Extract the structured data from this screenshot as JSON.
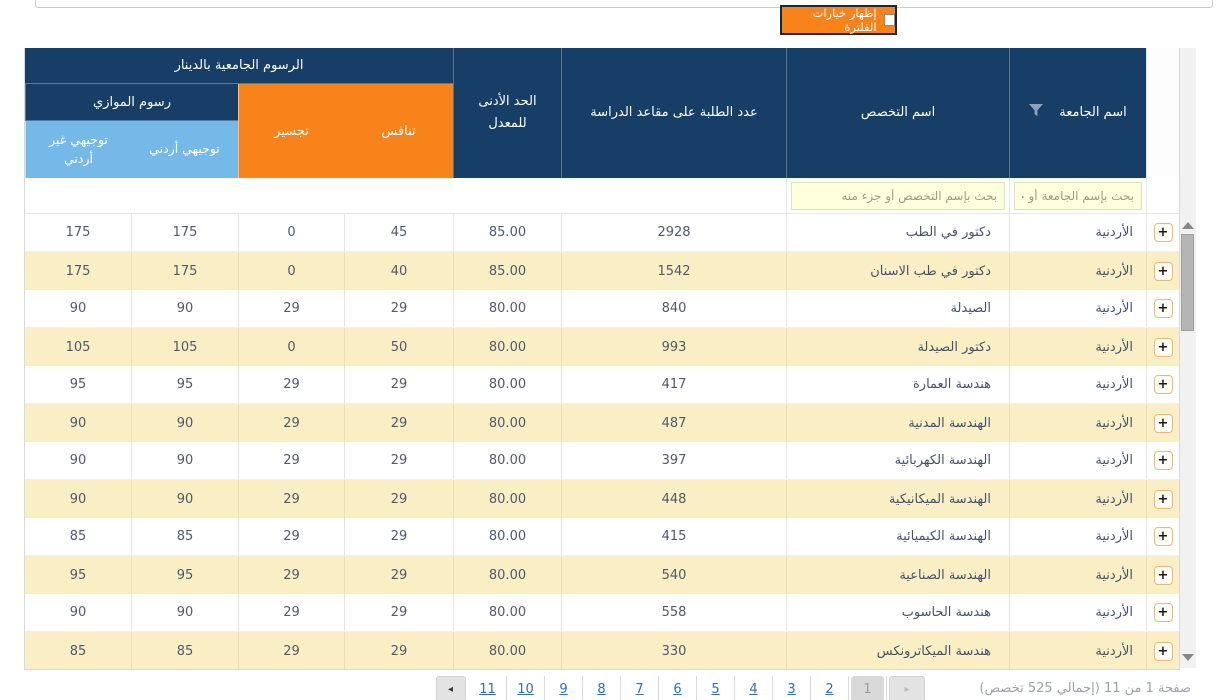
{
  "filter_button": {
    "label": "إظهار خيارات الفلترة",
    "checked": false
  },
  "table": {
    "group_headers": {
      "fees_dinar": "الرسوم الجامعية بالدينار",
      "parallel_fees": "رسوم الموازي"
    },
    "columns": {
      "university": "اسم الجامعة",
      "major": "اسم التخصص",
      "seats": "عدد الطلبة على مقاعد الدراسة",
      "min_avg": "الحد الأدنى للمعدل",
      "competitive": "تنافس",
      "bridging": "تجسير",
      "tawjihi_jordanian": "توجيهي أردني",
      "tawjihi_non_jordanian": "توجيهي غير أردني"
    },
    "search": {
      "university_placeholder": "بحث بإسم الجامعة أو جزء منه",
      "major_placeholder": "بحث بإسم التخصص أو جزء منه"
    },
    "expand_button_label": "+",
    "rows": [
      {
        "university": "الأردنية",
        "major": "دكتور في الطب",
        "seats": "2928",
        "min_avg": "85.00",
        "competitive": "45",
        "bridging": "0",
        "tawjihi_jordanian": "175",
        "tawjihi_non_jordanian": "175"
      },
      {
        "university": "الأردنية",
        "major": "دكتور في طب الاسنان",
        "seats": "1542",
        "min_avg": "85.00",
        "competitive": "40",
        "bridging": "0",
        "tawjihi_jordanian": "175",
        "tawjihi_non_jordanian": "175"
      },
      {
        "university": "الأردنية",
        "major": "الصيدلة",
        "seats": "840",
        "min_avg": "80.00",
        "competitive": "29",
        "bridging": "29",
        "tawjihi_jordanian": "90",
        "tawjihi_non_jordanian": "90"
      },
      {
        "university": "الأردنية",
        "major": "دكتور الصيدلة",
        "seats": "993",
        "min_avg": "80.00",
        "competitive": "50",
        "bridging": "0",
        "tawjihi_jordanian": "105",
        "tawjihi_non_jordanian": "105"
      },
      {
        "university": "الأردنية",
        "major": "هندسة العمارة",
        "seats": "417",
        "min_avg": "80.00",
        "competitive": "29",
        "bridging": "29",
        "tawjihi_jordanian": "95",
        "tawjihi_non_jordanian": "95"
      },
      {
        "university": "الأردنية",
        "major": "الهندسة المدنية",
        "seats": "487",
        "min_avg": "80.00",
        "competitive": "29",
        "bridging": "29",
        "tawjihi_jordanian": "90",
        "tawjihi_non_jordanian": "90"
      },
      {
        "university": "الأردنية",
        "major": "الهندسة الكهربائية",
        "seats": "397",
        "min_avg": "80.00",
        "competitive": "29",
        "bridging": "29",
        "tawjihi_jordanian": "90",
        "tawjihi_non_jordanian": "90"
      },
      {
        "university": "الأردنية",
        "major": "الهندسة الميكانيكية",
        "seats": "448",
        "min_avg": "80.00",
        "competitive": "29",
        "bridging": "29",
        "tawjihi_jordanian": "90",
        "tawjihi_non_jordanian": "90"
      },
      {
        "university": "الأردنية",
        "major": "الهندسة الكيميائية",
        "seats": "415",
        "min_avg": "80.00",
        "competitive": "29",
        "bridging": "29",
        "tawjihi_jordanian": "85",
        "tawjihi_non_jordanian": "85"
      },
      {
        "university": "الأردنية",
        "major": "الهندسة الصناعية",
        "seats": "540",
        "min_avg": "80.00",
        "competitive": "29",
        "bridging": "29",
        "tawjihi_jordanian": "95",
        "tawjihi_non_jordanian": "95"
      },
      {
        "university": "الأردنية",
        "major": "هندسة الحاسوب",
        "seats": "558",
        "min_avg": "80.00",
        "competitive": "29",
        "bridging": "29",
        "tawjihi_jordanian": "90",
        "tawjihi_non_jordanian": "90"
      },
      {
        "university": "الأردنية",
        "major": "هندسة الميكاترونكس",
        "seats": "330",
        "min_avg": "80.00",
        "competitive": "29",
        "bridging": "29",
        "tawjihi_jordanian": "85",
        "tawjihi_non_jordanian": "85"
      }
    ]
  },
  "pagination": {
    "prev_label": "◂",
    "next_label": "▸",
    "pages": [
      "11",
      "10",
      "9",
      "8",
      "7",
      "6",
      "5",
      "4",
      "3",
      "2"
    ],
    "current_page": "1",
    "summary": "صفحة 1 من 11 (إجمالي 525 تخصص)"
  },
  "colors": {
    "header_navy": "#163E66",
    "accent_orange": "#F8831A",
    "subheader_blue": "#74B9E8",
    "row_alt_yellow": "#FAEFC4",
    "link_blue": "#2F6FAD",
    "search_yellow": "#FFFFDE"
  }
}
